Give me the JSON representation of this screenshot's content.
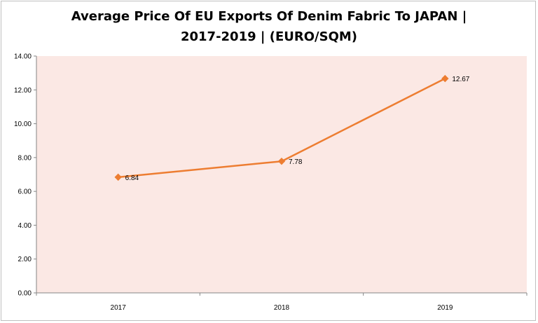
{
  "title_line1": "Average Price Of EU Exports Of Denim Fabric To JAPAN |",
  "title_line2": "2017-2019  | (EURO/SQM)",
  "colors": {
    "plot_background": "#fbe8e4",
    "series_line": "#ed7d31",
    "gridline": "#d9d9d9"
  },
  "chart_data": {
    "type": "line",
    "categories": [
      "2017",
      "2018",
      "2019"
    ],
    "series": [
      {
        "values": [
          6.84,
          7.78,
          12.67
        ]
      }
    ],
    "data_labels": [
      "6.84",
      "7.78",
      "12.67"
    ],
    "y_ticks": [
      "0.00",
      "2.00",
      "4.00",
      "6.00",
      "8.00",
      "10.00",
      "12.00",
      "14.00"
    ],
    "ylim": [
      0,
      14
    ],
    "title": "Average Price Of EU Exports Of Denim Fabric To JAPAN | 2017-2019  | (EURO/SQM)",
    "xlabel": "",
    "ylabel": "",
    "grid": false,
    "marker": "diamond"
  }
}
